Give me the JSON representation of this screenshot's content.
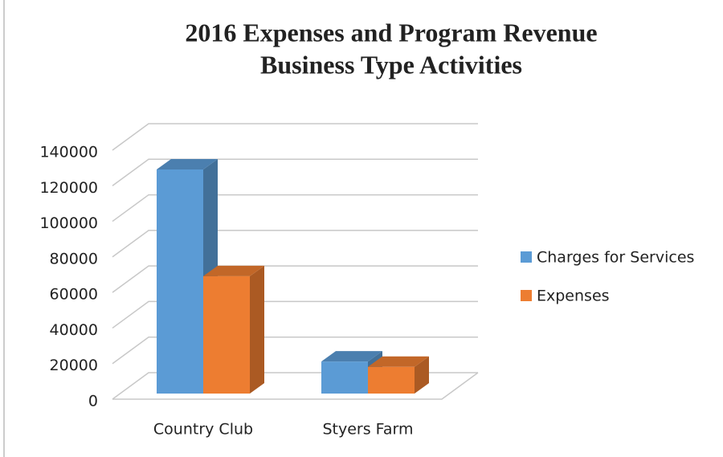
{
  "chart_data": {
    "type": "bar",
    "title": [
      "2016 Expenses and Program Revenue",
      "Business Type Activities"
    ],
    "categories": [
      "Country Club",
      "Styers Farm"
    ],
    "series": [
      {
        "name": "Charges for Services",
        "color": "#5b9bd5",
        "values": [
          126000,
          18000
        ]
      },
      {
        "name": "Expenses",
        "color": "#ed7d31",
        "values": [
          66000,
          15000
        ]
      }
    ],
    "ylim": [
      0,
      140000
    ],
    "yticks": [
      0,
      20000,
      40000,
      60000,
      80000,
      100000,
      120000,
      140000
    ],
    "grid": true,
    "legend": "right"
  }
}
